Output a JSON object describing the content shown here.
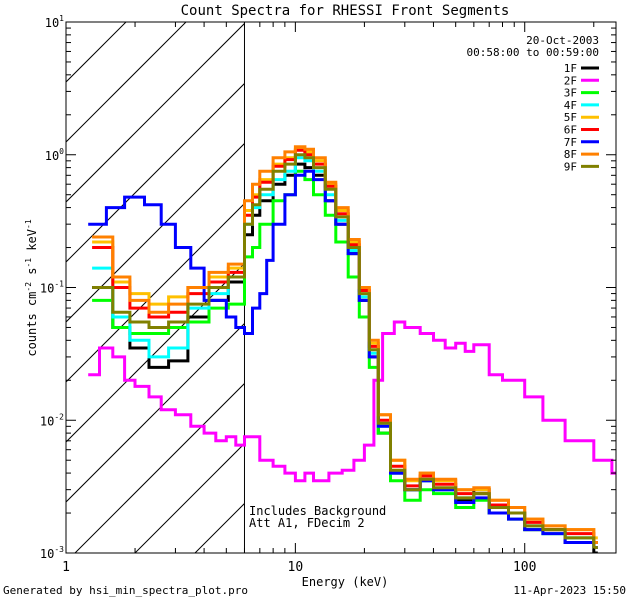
{
  "chart_data": {
    "type": "line",
    "title": "Count Spectra for RHESSI Front Segments",
    "xlabel": "Energy (keV)",
    "ylabel": {
      "base": "counts cm",
      "exp1": "-2",
      "mid": " s",
      "exp2": "-1",
      "tail": " keV",
      "exp3": "-1"
    },
    "xscale": "log",
    "yscale": "log",
    "xlim": [
      1,
      250
    ],
    "ylim": [
      0.001,
      10
    ],
    "x_ticks": [
      {
        "value": 1,
        "label": "1"
      },
      {
        "value": 10,
        "label": "10"
      },
      {
        "value": 100,
        "label": "100"
      }
    ],
    "y_ticks": [
      {
        "value": 0.001,
        "base": "10",
        "exp": "-3"
      },
      {
        "value": 0.01,
        "base": "10",
        "exp": "-2"
      },
      {
        "value": 0.1,
        "base": "10",
        "exp": "-1"
      },
      {
        "value": 1,
        "base": "10",
        "exp": "0"
      },
      {
        "value": 10,
        "base": "10",
        "exp": "1"
      }
    ],
    "date": "20-Oct-2003",
    "time_range": "00:58:00 to 00:59:00",
    "hatched_region_max_keV": 6,
    "notes": [
      "Includes Background",
      "Att A1, FDecim 2"
    ],
    "footer_left": "Generated by hsi_min_spectra_plot.pro",
    "footer_right": "11-Apr-2023 15:50",
    "series": [
      {
        "name": "1F",
        "color": "#000000",
        "x": [
          1.3,
          1.6,
          1.9,
          2.3,
          2.8,
          3.4,
          4.2,
          5.1,
          6,
          6.5,
          7,
          8,
          9,
          10,
          11,
          12,
          13.5,
          15,
          17,
          19,
          21,
          23,
          26,
          30,
          35,
          40,
          50,
          60,
          70,
          85,
          100,
          120,
          150,
          200
        ],
        "values": [
          0.1,
          0.05,
          0.035,
          0.025,
          0.028,
          0.06,
          0.08,
          0.11,
          0.25,
          0.35,
          0.45,
          0.6,
          0.7,
          0.85,
          0.8,
          0.7,
          0.45,
          0.3,
          0.18,
          0.08,
          0.03,
          0.008,
          0.004,
          0.003,
          0.0035,
          0.003,
          0.0025,
          0.003,
          0.002,
          0.002,
          0.0015,
          0.0015,
          0.0012,
          0.001
        ]
      },
      {
        "name": "2F",
        "color": "#ff00ff",
        "x": [
          1.25,
          1.4,
          1.6,
          1.8,
          2,
          2.3,
          2.6,
          3,
          3.5,
          4,
          4.5,
          5,
          5.5,
          6,
          7,
          8,
          9,
          10,
          11,
          12,
          14,
          16,
          18,
          20,
          22,
          24,
          27,
          30,
          35,
          40,
          45,
          50,
          55,
          60,
          70,
          80,
          100,
          120,
          150,
          200,
          240
        ],
        "values": [
          0.022,
          0.035,
          0.03,
          0.02,
          0.018,
          0.015,
          0.012,
          0.011,
          0.009,
          0.008,
          0.007,
          0.0075,
          0.0065,
          0.0075,
          0.005,
          0.0045,
          0.004,
          0.0035,
          0.004,
          0.0035,
          0.004,
          0.0042,
          0.005,
          0.0065,
          0.02,
          0.045,
          0.055,
          0.05,
          0.045,
          0.04,
          0.035,
          0.038,
          0.033,
          0.037,
          0.022,
          0.02,
          0.015,
          0.01,
          0.007,
          0.005,
          0.004
        ]
      },
      {
        "name": "3F",
        "color": "#00ff00",
        "x": [
          1.3,
          1.6,
          1.9,
          2.3,
          2.8,
          3.4,
          4.2,
          5.1,
          6,
          6.5,
          7,
          8,
          9,
          10,
          11,
          12,
          13.5,
          15,
          17,
          19,
          21,
          23,
          26,
          30,
          35,
          40,
          50,
          60,
          70,
          85,
          100,
          120,
          150,
          200
        ],
        "values": [
          0.08,
          0.05,
          0.045,
          0.045,
          0.05,
          0.055,
          0.07,
          0.075,
          0.17,
          0.2,
          0.3,
          0.45,
          0.5,
          0.75,
          0.65,
          0.5,
          0.35,
          0.22,
          0.12,
          0.06,
          0.025,
          0.008,
          0.0035,
          0.0025,
          0.003,
          0.0028,
          0.0022,
          0.0025,
          0.002,
          0.0018,
          0.0015,
          0.0014,
          0.0013,
          0.0012
        ]
      },
      {
        "name": "4F",
        "color": "#00ffff",
        "x": [
          1.3,
          1.6,
          1.9,
          2.3,
          2.8,
          3.4,
          4.2,
          5.1,
          6,
          6.5,
          7,
          8,
          9,
          10,
          11,
          12,
          13.5,
          15,
          17,
          19,
          21,
          23,
          26,
          30,
          35,
          40,
          50,
          60,
          70,
          85,
          100,
          120,
          150,
          200
        ],
        "values": [
          0.14,
          0.06,
          0.04,
          0.03,
          0.035,
          0.07,
          0.09,
          0.12,
          0.3,
          0.4,
          0.5,
          0.65,
          0.75,
          0.95,
          0.9,
          0.75,
          0.5,
          0.32,
          0.19,
          0.085,
          0.032,
          0.009,
          0.004,
          0.003,
          0.0035,
          0.003,
          0.0026,
          0.0028,
          0.0022,
          0.002,
          0.0016,
          0.0014,
          0.0013,
          0.0011
        ]
      },
      {
        "name": "5F",
        "color": "#ffc000",
        "x": [
          1.3,
          1.6,
          1.9,
          2.3,
          2.8,
          3.4,
          4.2,
          5.1,
          6,
          6.5,
          7,
          8,
          9,
          10,
          11,
          12,
          13.5,
          15,
          17,
          19,
          21,
          23,
          26,
          30,
          35,
          40,
          50,
          60,
          70,
          85,
          100,
          120,
          150,
          200
        ],
        "values": [
          0.22,
          0.11,
          0.09,
          0.075,
          0.085,
          0.1,
          0.12,
          0.14,
          0.38,
          0.5,
          0.65,
          0.85,
          0.95,
          1.1,
          1.05,
          0.9,
          0.6,
          0.38,
          0.22,
          0.1,
          0.038,
          0.011,
          0.005,
          0.0035,
          0.004,
          0.0035,
          0.003,
          0.003,
          0.0025,
          0.0022,
          0.0018,
          0.0016,
          0.0015,
          0.0013
        ]
      },
      {
        "name": "6F",
        "color": "#ff0000",
        "x": [
          1.3,
          1.6,
          1.9,
          2.3,
          2.8,
          3.4,
          4.2,
          5.1,
          6,
          6.5,
          7,
          8,
          9,
          10,
          11,
          12,
          13.5,
          15,
          17,
          19,
          21,
          23,
          26,
          30,
          35,
          40,
          50,
          60,
          70,
          85,
          100,
          120,
          150,
          200
        ],
        "values": [
          0.2,
          0.1,
          0.07,
          0.06,
          0.065,
          0.09,
          0.11,
          0.13,
          0.35,
          0.48,
          0.62,
          0.82,
          0.92,
          1.08,
          1.0,
          0.85,
          0.58,
          0.36,
          0.21,
          0.095,
          0.036,
          0.01,
          0.0045,
          0.0032,
          0.0038,
          0.0033,
          0.0028,
          0.0028,
          0.0023,
          0.002,
          0.0017,
          0.0015,
          0.0014,
          0.0012
        ]
      },
      {
        "name": "7F",
        "color": "#0000ff",
        "x": [
          1.25,
          1.5,
          1.8,
          2.2,
          2.6,
          3,
          3.5,
          4,
          4.5,
          5,
          5.5,
          6,
          6.5,
          7,
          7.5,
          8,
          9,
          10,
          11,
          12,
          13.5,
          15,
          17,
          19,
          21,
          23,
          26,
          30,
          35,
          40,
          50,
          60,
          70,
          85,
          100,
          120,
          150,
          200
        ],
        "values": [
          0.3,
          0.4,
          0.48,
          0.42,
          0.3,
          0.2,
          0.14,
          0.08,
          0.08,
          0.06,
          0.05,
          0.045,
          0.07,
          0.09,
          0.16,
          0.3,
          0.5,
          0.7,
          0.75,
          0.65,
          0.45,
          0.3,
          0.18,
          0.08,
          0.03,
          0.009,
          0.004,
          0.003,
          0.0035,
          0.003,
          0.0024,
          0.0026,
          0.002,
          0.0018,
          0.0015,
          0.0014,
          0.0012,
          0.0011
        ]
      },
      {
        "name": "8F",
        "color": "#ff8000",
        "x": [
          1.3,
          1.6,
          1.9,
          2.3,
          2.8,
          3.4,
          4.2,
          5.1,
          6,
          6.5,
          7,
          8,
          9,
          10,
          11,
          12,
          13.5,
          15,
          17,
          19,
          21,
          23,
          26,
          30,
          35,
          40,
          50,
          60,
          70,
          85,
          100,
          120,
          150,
          200
        ],
        "values": [
          0.24,
          0.12,
          0.08,
          0.065,
          0.075,
          0.1,
          0.13,
          0.15,
          0.45,
          0.6,
          0.75,
          0.95,
          1.05,
          1.15,
          1.1,
          0.95,
          0.62,
          0.4,
          0.23,
          0.1,
          0.04,
          0.011,
          0.005,
          0.0036,
          0.004,
          0.0036,
          0.003,
          0.0031,
          0.0025,
          0.0022,
          0.0018,
          0.0016,
          0.0015,
          0.0012
        ]
      },
      {
        "name": "9F",
        "color": "#808000",
        "x": [
          1.3,
          1.6,
          1.9,
          2.3,
          2.8,
          3.4,
          4.2,
          5.1,
          6,
          6.5,
          7,
          8,
          9,
          10,
          11,
          12,
          13.5,
          15,
          17,
          19,
          21,
          23,
          26,
          30,
          35,
          40,
          50,
          60,
          70,
          85,
          100,
          120,
          150,
          200
        ],
        "values": [
          0.1,
          0.065,
          0.055,
          0.05,
          0.055,
          0.075,
          0.1,
          0.12,
          0.3,
          0.42,
          0.55,
          0.75,
          0.85,
          1.0,
          0.95,
          0.8,
          0.55,
          0.34,
          0.2,
          0.09,
          0.034,
          0.0095,
          0.0042,
          0.003,
          0.0036,
          0.0031,
          0.0026,
          0.0028,
          0.0022,
          0.002,
          0.0016,
          0.0015,
          0.0013,
          0.0011
        ]
      }
    ]
  }
}
